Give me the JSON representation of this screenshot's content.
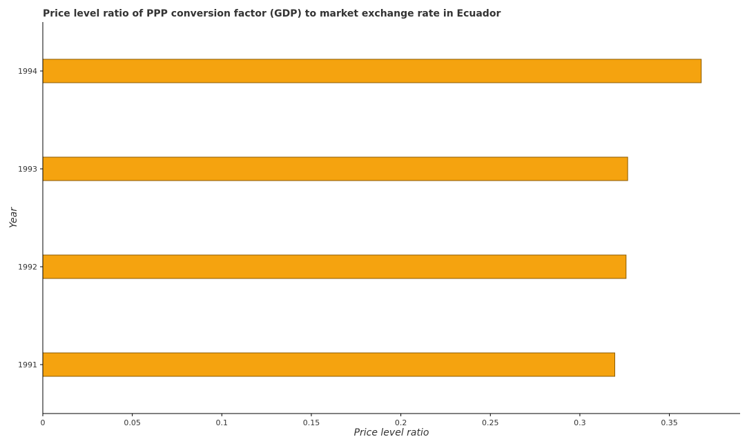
{
  "chart_data": {
    "type": "bar",
    "orientation": "horizontal",
    "title": "Price level ratio of PPP conversion factor (GDP) to market exchange rate in Ecuador",
    "xlabel": "Price level ratio",
    "ylabel": "Year",
    "categories": [
      "1991",
      "1992",
      "1993",
      "1994"
    ],
    "values": [
      0.3195,
      0.3258,
      0.3267,
      0.3678
    ],
    "xlim": [
      0,
      0.3895
    ],
    "xticks": [
      0,
      0.05,
      0.1,
      0.15,
      0.2,
      0.25,
      0.3,
      0.35
    ],
    "xtick_labels": [
      "0",
      "0.05",
      "0.1",
      "0.15",
      "0.2",
      "0.25",
      "0.3",
      "0.35"
    ],
    "grid": false,
    "bar_color": "#f5a30f"
  }
}
